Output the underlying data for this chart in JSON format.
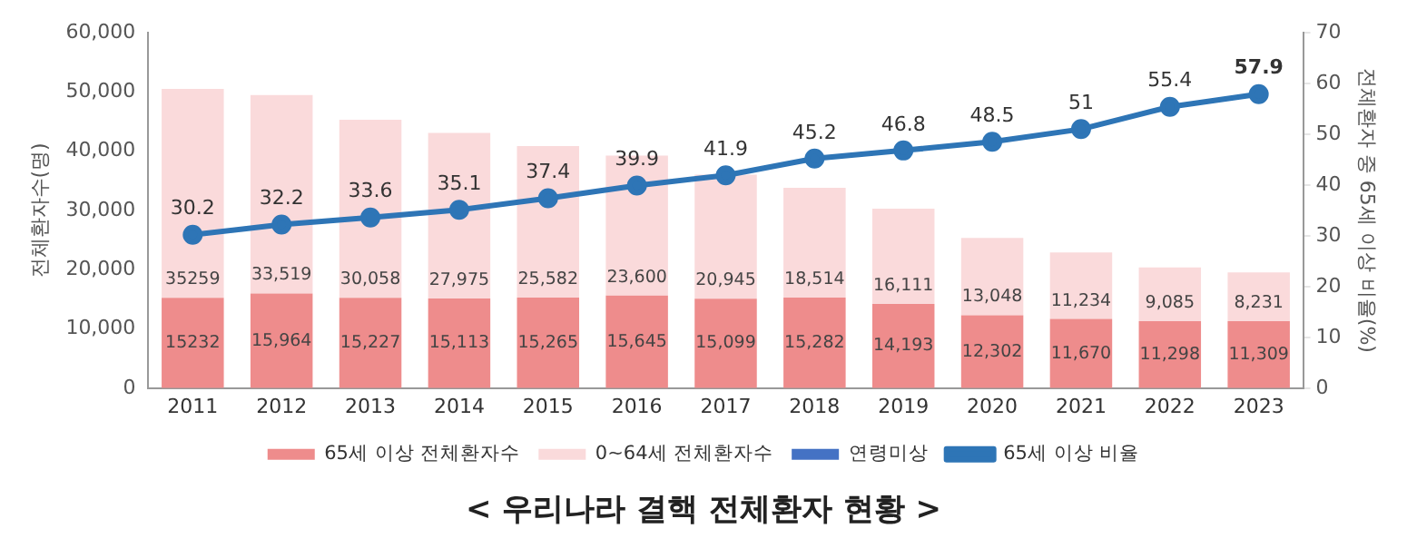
{
  "chart_data": {
    "type": "bar",
    "title": "< 우리나라 결핵 전체환자 현황 >",
    "ylabel": "전체환자수(명)",
    "y2label": "전체환자 중 65세 이상 비율(%)",
    "categories": [
      "2011",
      "2012",
      "2013",
      "2014",
      "2015",
      "2016",
      "2017",
      "2018",
      "2019",
      "2020",
      "2021",
      "2022",
      "2023"
    ],
    "stacked": true,
    "series": [
      {
        "name": "65세 이상 전체환자수",
        "color": "#ee8c8c",
        "values": [
          15232,
          15964,
          15227,
          15113,
          15265,
          15645,
          15099,
          15282,
          14193,
          12302,
          11670,
          11298,
          11309
        ],
        "value_labels": [
          "15232",
          "15,964",
          "15,227",
          "15,113",
          "15,265",
          "15,645",
          "15,099",
          "15,282",
          "14,193",
          "12,302",
          "11,670",
          "11,298",
          "11,309"
        ]
      },
      {
        "name": "0~64세 전체환자수",
        "color": "#fadadb",
        "values": [
          35259,
          33519,
          30058,
          27975,
          25582,
          23600,
          20945,
          18514,
          16111,
          13048,
          11234,
          9085,
          8231
        ],
        "value_labels": [
          "35259",
          "33,519",
          "30,058",
          "27,975",
          "25,582",
          "23,600",
          "20,945",
          "18,514",
          "16,111",
          "13,048",
          "11,234",
          "9,085",
          "8,231"
        ]
      },
      {
        "name": "연령미상",
        "color": "#4472c4",
        "values": [
          null,
          null,
          null,
          null,
          null,
          null,
          null,
          null,
          null,
          null,
          null,
          null,
          null
        ]
      },
      {
        "name": "65세 이상 비율",
        "type": "line",
        "axis": "y2",
        "color": "#2e75b6",
        "values": [
          30.2,
          32.2,
          33.6,
          35.1,
          37.4,
          39.9,
          41.9,
          45.2,
          46.8,
          48.5,
          51,
          55.4,
          57.9
        ],
        "value_labels": [
          "30.2",
          "32.2",
          "33.6",
          "35.1",
          "37.4",
          "39.9",
          "41.9",
          "45.2",
          "46.8",
          "48.5",
          "51",
          "55.4",
          "57.9"
        ]
      }
    ],
    "ylim": [
      0,
      60000
    ],
    "yticks": [
      0,
      {
        "value": 10000,
        "label": "10,000"
      },
      {
        "value": 20000,
        "label": "20,000"
      },
      {
        "value": 30000,
        "label": "30,000"
      },
      {
        "value": 40000,
        "label": "40,000"
      },
      {
        "value": 50000,
        "label": "50,000"
      },
      {
        "value": 60000,
        "label": "60,000"
      }
    ],
    "y2lim": [
      0,
      70
    ],
    "y2ticks": [
      0,
      10,
      20,
      30,
      40,
      50,
      60,
      70
    ],
    "marker": "circle",
    "line_style": "solid",
    "grid": false,
    "legend": "bottom"
  }
}
